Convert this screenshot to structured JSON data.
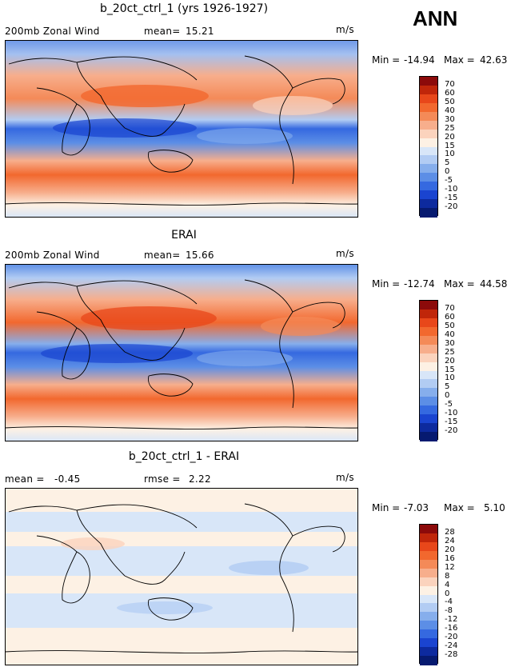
{
  "season": "ANN",
  "units": "m/s",
  "panels": [
    {
      "title": "b_20ct_ctrl_1 (yrs 1926-1927)",
      "left_label": "200mb Zonal Wind",
      "stat_label": "mean=",
      "stat_value": "15.21",
      "units": "m/s",
      "min_label": "Min =",
      "min_value": "-14.94",
      "max_label": "Max =",
      "max_value": "42.63",
      "colorbar": [
        "70",
        "60",
        "50",
        "40",
        "30",
        "25",
        "20",
        "15",
        "10",
        "5",
        "0",
        "-5",
        "-10",
        "-15",
        "-20"
      ]
    },
    {
      "title": "ERAI",
      "left_label": "200mb Zonal Wind",
      "stat_label": "mean=",
      "stat_value": "15.66",
      "units": "m/s",
      "min_label": "Min =",
      "min_value": "-12.74",
      "max_label": "Max =",
      "max_value": "44.58",
      "colorbar": [
        "70",
        "60",
        "50",
        "40",
        "30",
        "25",
        "20",
        "15",
        "10",
        "5",
        "0",
        "-5",
        "-10",
        "-15",
        "-20"
      ]
    },
    {
      "title": "b_20ct_ctrl_1 - ERAI",
      "left_label": "mean =",
      "left_value": "-0.45",
      "stat_label": "rmse =",
      "stat_value": "2.22",
      "units": "m/s",
      "min_label": "Min =",
      "min_value": "-7.03",
      "max_label": "Max =",
      "max_value": "5.10",
      "colorbar": [
        "28",
        "24",
        "20",
        "16",
        "12",
        "8",
        "4",
        "0",
        "-4",
        "-8",
        "-12",
        "-16",
        "-20",
        "-24",
        "-28"
      ]
    }
  ],
  "colorbar_colors": [
    "#8c0a0a",
    "#c0260a",
    "#e8471a",
    "#f2682e",
    "#f48a58",
    "#f7ae8c",
    "#fbd3bd",
    "#fdf1e4",
    "#d8e6f8",
    "#b2ccf3",
    "#86aeec",
    "#5c8ee6",
    "#3569e0",
    "#1a44d0",
    "#0d2a9e",
    "#061a70"
  ]
}
